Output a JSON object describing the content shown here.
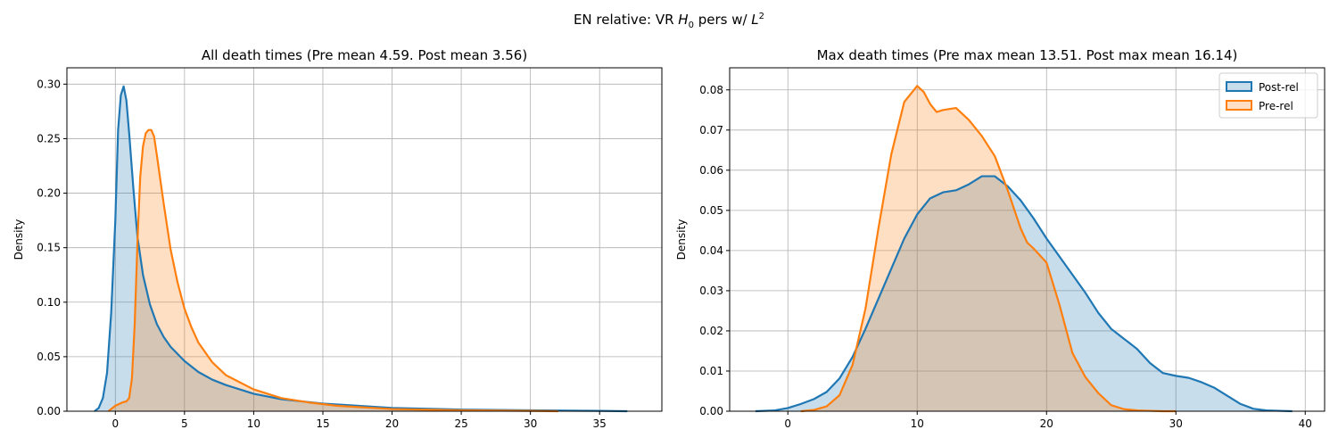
{
  "suptitle": "EN relative: VR H0 pers w/ L2",
  "suptitle_parts": {
    "pre": "EN relative: VR ",
    "h": "H",
    "hsub": "0",
    "mid": " pers w/ ",
    "l": "L",
    "lsup": "2"
  },
  "colors": {
    "post": "#1f77b4",
    "pre": "#ff7f0e",
    "grid": "#b0b0b0"
  },
  "chart_data": [
    {
      "type": "area",
      "title": "All death times (Pre mean 4.59. Post mean 3.56)",
      "xlabel": "",
      "ylabel": "Density",
      "xlim": [
        -3.5,
        39.5
      ],
      "ylim": [
        0,
        0.315
      ],
      "xticks": [
        0,
        5,
        10,
        15,
        20,
        25,
        30,
        35
      ],
      "yticks": [
        0.0,
        0.05,
        0.1,
        0.15,
        0.2,
        0.25,
        0.3
      ],
      "ytick_labels": [
        "0.00",
        "0.05",
        "0.10",
        "0.15",
        "0.20",
        "0.25",
        "0.30"
      ],
      "grid": true,
      "series": [
        {
          "key": "post",
          "x": [
            -1.5,
            -1.2,
            -0.9,
            -0.6,
            -0.3,
            0.0,
            0.2,
            0.4,
            0.6,
            0.8,
            1.0,
            1.3,
            1.6,
            2.0,
            2.5,
            3.0,
            3.5,
            4.0,
            5.0,
            6.0,
            7.0,
            8.0,
            10.0,
            12.0,
            15.0,
            20.0,
            25.0,
            30.0,
            35.0,
            37.0
          ],
          "y": [
            0.0,
            0.003,
            0.012,
            0.035,
            0.09,
            0.175,
            0.258,
            0.29,
            0.298,
            0.285,
            0.255,
            0.205,
            0.16,
            0.125,
            0.098,
            0.08,
            0.068,
            0.059,
            0.046,
            0.036,
            0.029,
            0.024,
            0.016,
            0.011,
            0.007,
            0.003,
            0.0015,
            0.0008,
            0.0003,
            0.0
          ]
        },
        {
          "key": "pre",
          "x": [
            -0.5,
            0.0,
            0.5,
            0.8,
            1.0,
            1.2,
            1.4,
            1.6,
            1.8,
            2.0,
            2.2,
            2.4,
            2.6,
            2.8,
            3.0,
            3.5,
            4.0,
            4.5,
            5.0,
            5.5,
            6.0,
            7.0,
            8.0,
            10.0,
            12.0,
            14.0,
            16.0,
            20.0,
            25.0,
            30.0,
            32.0
          ],
          "y": [
            0.0,
            0.005,
            0.008,
            0.009,
            0.012,
            0.03,
            0.08,
            0.155,
            0.215,
            0.243,
            0.255,
            0.258,
            0.258,
            0.252,
            0.235,
            0.19,
            0.148,
            0.118,
            0.094,
            0.077,
            0.063,
            0.045,
            0.033,
            0.02,
            0.012,
            0.008,
            0.005,
            0.002,
            0.0008,
            0.0003,
            0.0
          ]
        }
      ]
    },
    {
      "type": "area",
      "title": "Max death times (Pre max mean 13.51. Post max mean 16.14)",
      "xlabel": "",
      "ylabel": "Density",
      "xlim": [
        -4.5,
        41.5
      ],
      "ylim": [
        0,
        0.0855
      ],
      "xticks": [
        0,
        10,
        20,
        30,
        40
      ],
      "yticks": [
        0.0,
        0.01,
        0.02,
        0.03,
        0.04,
        0.05,
        0.06,
        0.07,
        0.08
      ],
      "ytick_labels": [
        "0.00",
        "0.01",
        "0.02",
        "0.03",
        "0.04",
        "0.05",
        "0.06",
        "0.07",
        "0.08"
      ],
      "grid": true,
      "legend": {
        "position": "top-right",
        "entries": [
          "Post-rel",
          "Pre-rel"
        ]
      },
      "series": [
        {
          "key": "post",
          "name": "Post-rel",
          "x": [
            -2.5,
            -1.0,
            0.0,
            1.0,
            2.0,
            3.0,
            4.0,
            5.0,
            6.0,
            7.0,
            8.0,
            9.0,
            10.0,
            11.0,
            12.0,
            13.0,
            14.0,
            15.0,
            16.0,
            17.0,
            18.0,
            19.0,
            20.0,
            21.0,
            22.0,
            23.0,
            24.0,
            25.0,
            26.0,
            27.0,
            28.0,
            29.0,
            30.0,
            31.0,
            32.0,
            33.0,
            34.0,
            35.0,
            36.0,
            37.0,
            38.0,
            39.0
          ],
          "y": [
            0.0,
            0.0002,
            0.0008,
            0.0018,
            0.003,
            0.0048,
            0.0082,
            0.0135,
            0.0205,
            0.028,
            0.0355,
            0.043,
            0.049,
            0.053,
            0.0545,
            0.055,
            0.0565,
            0.0585,
            0.0585,
            0.056,
            0.0525,
            0.048,
            0.043,
            0.0385,
            0.034,
            0.0295,
            0.0245,
            0.0205,
            0.018,
            0.0155,
            0.012,
            0.0095,
            0.0088,
            0.0083,
            0.0072,
            0.0058,
            0.0038,
            0.0018,
            0.0006,
            0.0002,
            0.0001,
            0.0
          ]
        },
        {
          "key": "pre",
          "name": "Pre-rel",
          "x": [
            1.0,
            2.0,
            3.0,
            4.0,
            5.0,
            6.0,
            7.0,
            8.0,
            9.0,
            10.0,
            10.5,
            11.0,
            11.5,
            12.0,
            13.0,
            14.0,
            15.0,
            16.0,
            17.0,
            18.0,
            18.5,
            19.0,
            20.0,
            21.0,
            22.0,
            23.0,
            24.0,
            25.0,
            26.0,
            27.0,
            28.0,
            29.0,
            30.0
          ],
          "y": [
            0.0,
            0.0003,
            0.0012,
            0.004,
            0.0115,
            0.0255,
            0.0455,
            0.064,
            0.077,
            0.081,
            0.0795,
            0.0765,
            0.0745,
            0.075,
            0.0755,
            0.0725,
            0.0685,
            0.0635,
            0.055,
            0.0455,
            0.042,
            0.0405,
            0.037,
            0.0265,
            0.0145,
            0.0085,
            0.0045,
            0.0015,
            0.0005,
            0.0002,
            0.0001,
            0.0,
            0.0
          ]
        }
      ]
    }
  ]
}
